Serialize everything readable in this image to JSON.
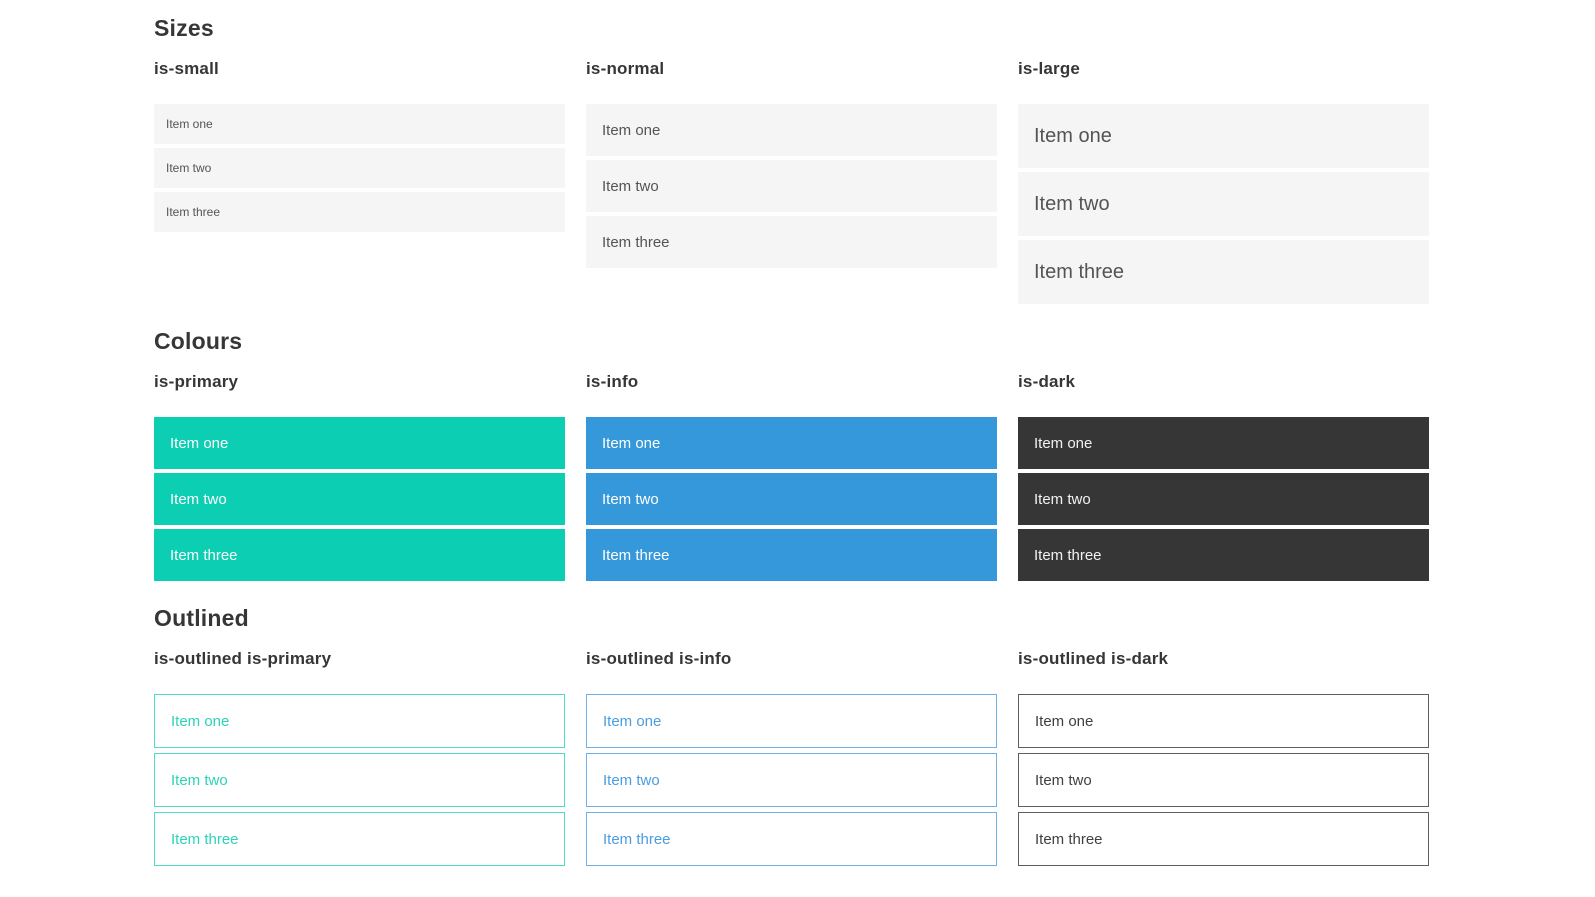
{
  "sections": [
    {
      "title": "Sizes",
      "groups": [
        {
          "label": "is-small",
          "items": [
            "Item one",
            "Item two",
            "Item three"
          ]
        },
        {
          "label": "is-normal",
          "items": [
            "Item one",
            "Item two",
            "Item three"
          ]
        },
        {
          "label": "is-large",
          "items": [
            "Item one",
            "Item two",
            "Item three"
          ]
        }
      ]
    },
    {
      "title": "Colours",
      "groups": [
        {
          "label": "is-primary",
          "items": [
            "Item one",
            "Item two",
            "Item three"
          ]
        },
        {
          "label": "is-info",
          "items": [
            "Item one",
            "Item two",
            "Item three"
          ]
        },
        {
          "label": "is-dark",
          "items": [
            "Item one",
            "Item two",
            "Item three"
          ]
        }
      ]
    },
    {
      "title": "Outlined",
      "groups": [
        {
          "label": "is-outlined is-primary",
          "items": [
            "Item one",
            "Item two",
            "Item three"
          ]
        },
        {
          "label": "is-outlined is-info",
          "items": [
            "Item one",
            "Item two",
            "Item three"
          ]
        },
        {
          "label": "is-outlined is-dark",
          "items": [
            "Item one",
            "Item two",
            "Item three"
          ]
        }
      ]
    }
  ],
  "colors": {
    "heading": "#363636",
    "item_text": "#545454",
    "light_bg": "#f5f5f5",
    "primary": "#0bceb2",
    "info": "#3498db",
    "dark": "#363636",
    "on_color_text": "#ffffff",
    "on_dark_text": "#f2f2f2",
    "outlined_primary_text": "#2bd4b9",
    "outlined_primary_border": "#4edcc7",
    "outlined_info_text": "#4a9de0",
    "outlined_info_border": "#6fb0e5",
    "outlined_dark_text": "#404040",
    "outlined_dark_border": "#5e5e5e"
  }
}
